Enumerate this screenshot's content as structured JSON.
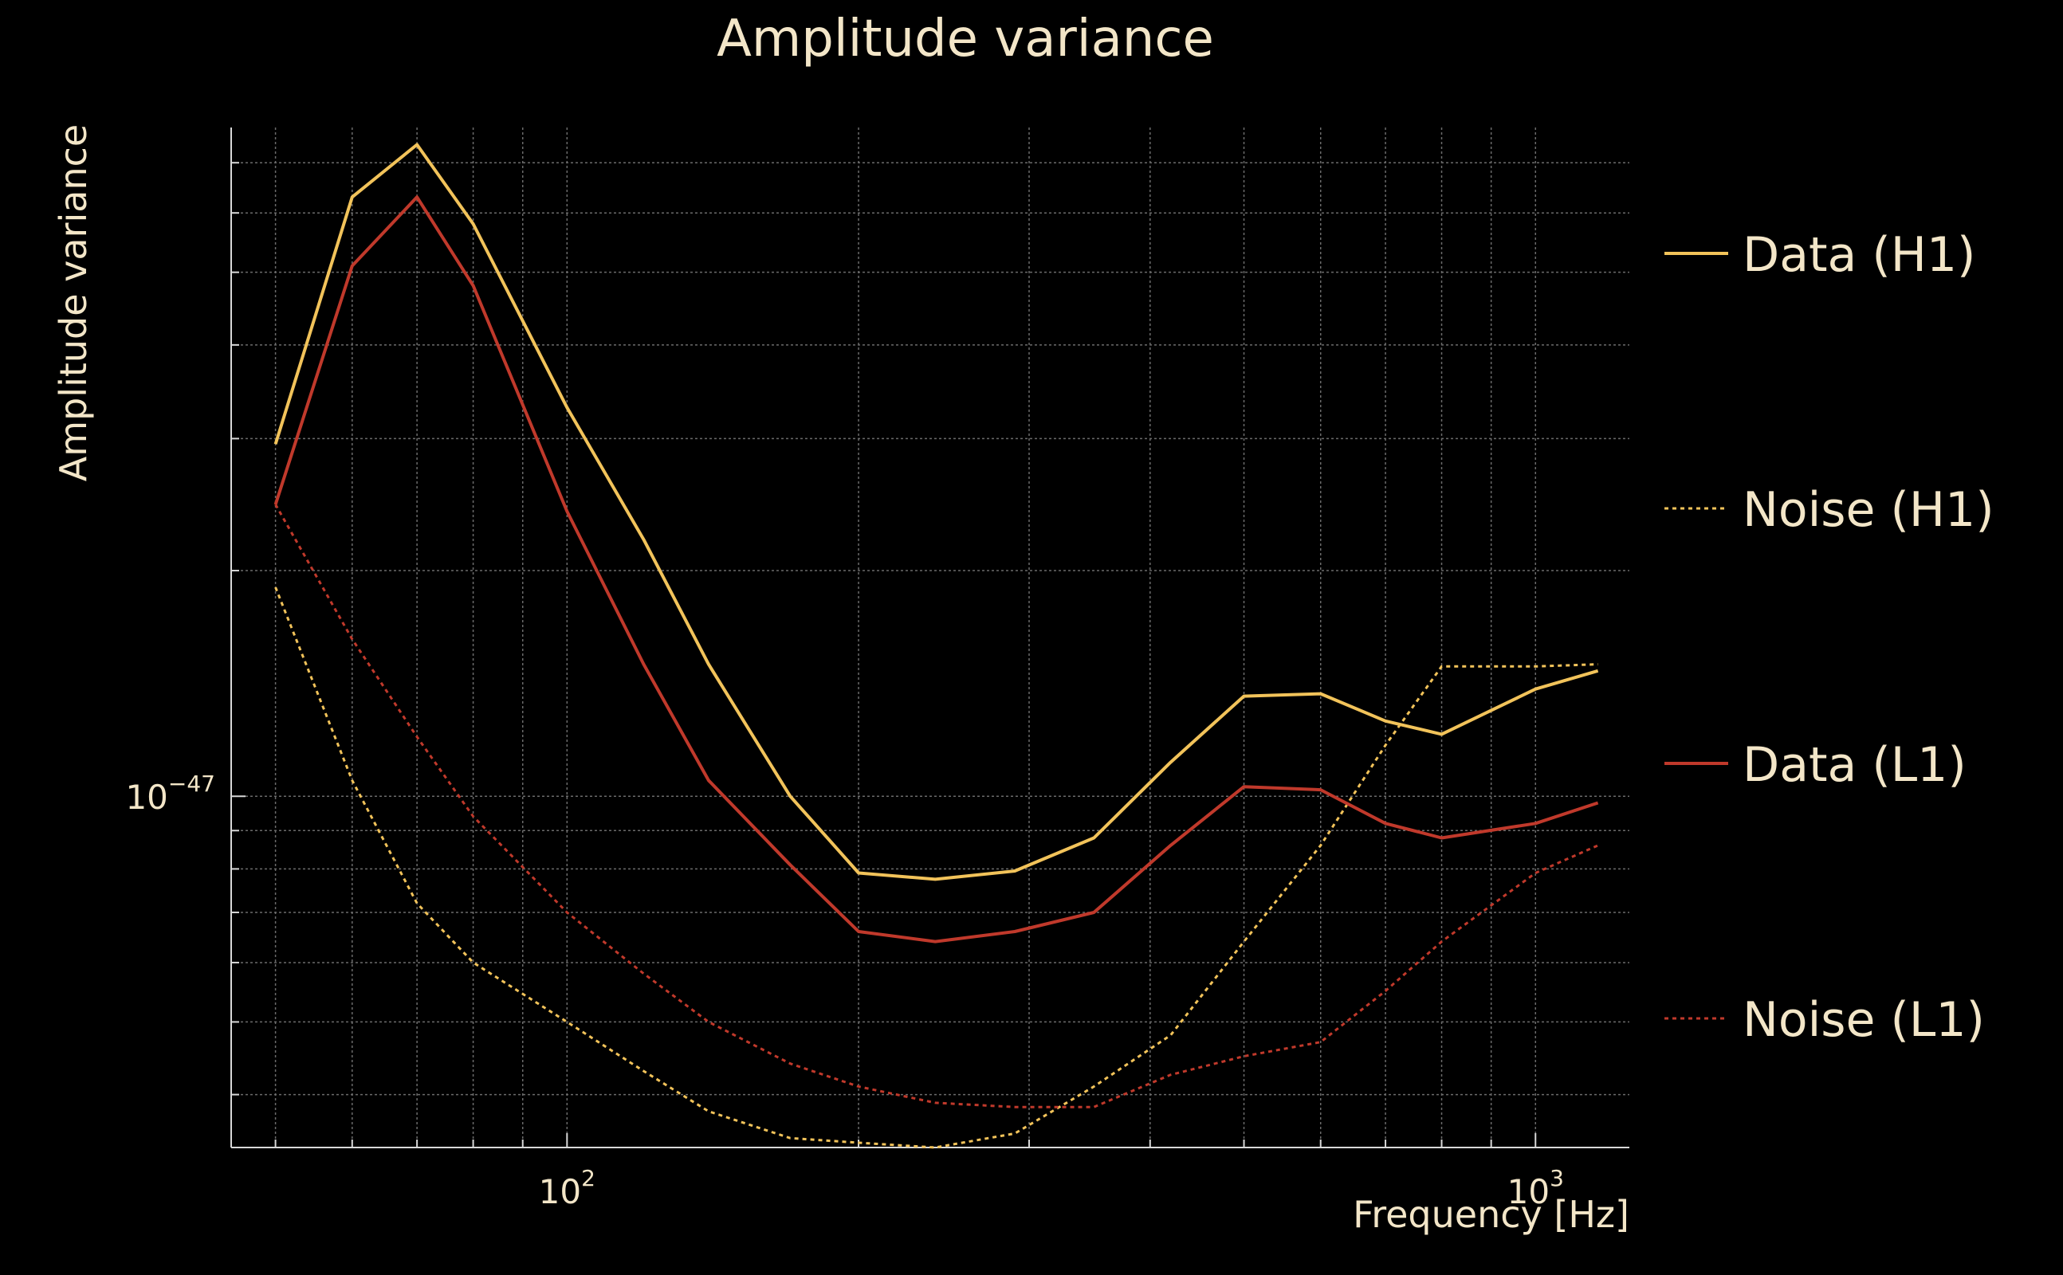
{
  "chart_data": {
    "type": "line",
    "title": "Amplitude variance",
    "xlabel": "Frequency [Hz]",
    "ylabel": "Amplitude variance",
    "xscale": "log",
    "yscale": "log",
    "xlim": [
      45,
      1250
    ],
    "ylim": [
      3.4e-48,
      7.8e-47
    ],
    "x_tick_labels": [
      {
        "value": 100,
        "base": "10",
        "exp": "2"
      },
      {
        "value": 1000,
        "base": "10",
        "exp": "3"
      }
    ],
    "y_tick_labels": [
      {
        "value": 1e-47,
        "base": "10",
        "exp": "−47"
      }
    ],
    "grid": true,
    "legend_position": "right",
    "colors": {
      "h1": "#f2c35a",
      "l1": "#c0392b",
      "text": "#f3e6c8"
    },
    "x": [
      50,
      60,
      70,
      80,
      100,
      120,
      140,
      170,
      200,
      240,
      290,
      350,
      420,
      500,
      600,
      700,
      800,
      1000,
      1160
    ],
    "series": [
      {
        "name": "Data (H1)",
        "style": "solid",
        "color": "#f2c35a",
        "values": [
          2.95e-47,
          6.3e-47,
          7.4e-47,
          5.8e-47,
          3.3e-47,
          2.2e-47,
          1.5e-47,
          1e-47,
          7.9e-48,
          7.75e-48,
          7.95e-48,
          8.8e-48,
          1.11e-47,
          1.36e-47,
          1.37e-47,
          1.26e-47,
          1.21e-47,
          1.39e-47,
          1.47e-47
        ]
      },
      {
        "name": "Noise (H1)",
        "style": "dotted",
        "color": "#f2c35a",
        "values": [
          1.9e-47,
          1.05e-47,
          7.2e-48,
          6e-48,
          5e-48,
          4.3e-48,
          3.8e-48,
          3.5e-48,
          3.45e-48,
          3.4e-48,
          3.55e-48,
          4.1e-48,
          4.8e-48,
          6.4e-48,
          8.6e-48,
          1.17e-47,
          1.49e-47,
          1.49e-47,
          1.5e-47
        ]
      },
      {
        "name": "Data (L1)",
        "style": "solid",
        "color": "#c0392b",
        "values": [
          2.45e-47,
          5.1e-47,
          6.3e-47,
          4.8e-47,
          2.4e-47,
          1.5e-47,
          1.05e-47,
          8.1e-48,
          6.6e-48,
          6.4e-48,
          6.6e-48,
          7e-48,
          8.6e-48,
          1.03e-47,
          1.02e-47,
          9.2e-48,
          8.8e-48,
          9.2e-48,
          9.8e-48
        ]
      },
      {
        "name": "Noise (L1)",
        "style": "dotted",
        "color": "#c0392b",
        "values": [
          2.45e-47,
          1.62e-47,
          1.2e-47,
          9.4e-48,
          7e-48,
          5.8e-48,
          5e-48,
          4.4e-48,
          4.1e-48,
          3.9e-48,
          3.85e-48,
          3.85e-48,
          4.25e-48,
          4.5e-48,
          4.7e-48,
          5.5e-48,
          6.4e-48,
          7.9e-48,
          8.6e-48
        ]
      }
    ]
  }
}
